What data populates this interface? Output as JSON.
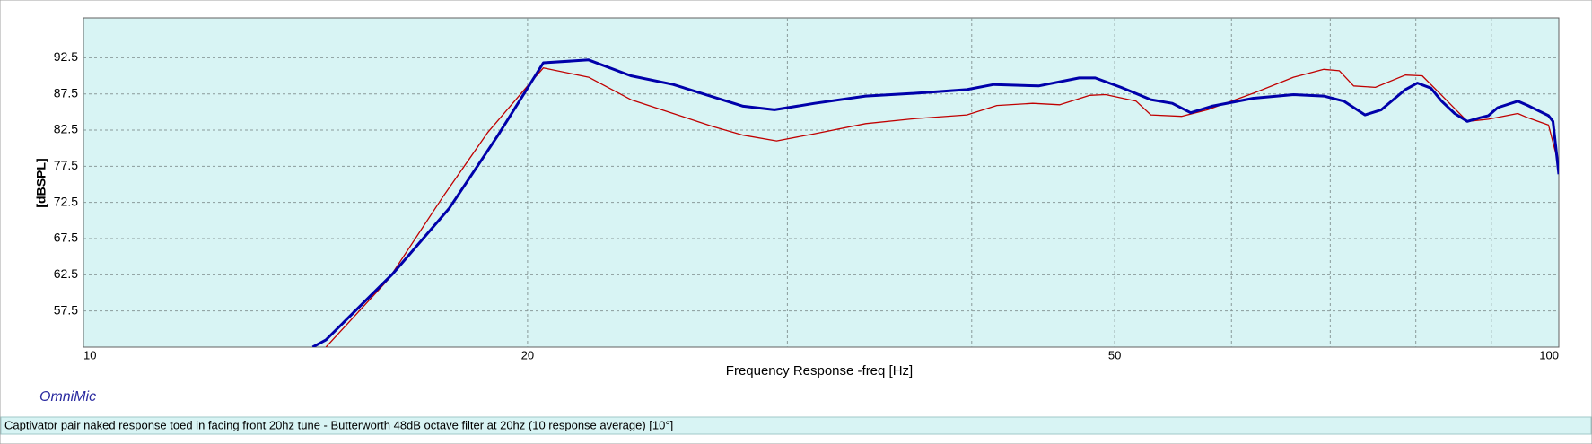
{
  "chart_data": {
    "type": "line",
    "ylabel": "[dBSPL]",
    "xlabel": "Frequency Response -freq [Hz]",
    "watermark": "OmniMic",
    "caption": "Captivator pair naked response toed in facing front 20hz tune - Butterworth 48dB octave filter at 20hz (10 response average) [10°]",
    "xscale": "log",
    "xlim": [
      10,
      100
    ],
    "xticks": [
      10,
      20,
      50,
      100
    ],
    "x_minor_grid": [
      30,
      40,
      60,
      70,
      80,
      90
    ],
    "ylim": [
      52.5,
      98
    ],
    "yticks": [
      57.5,
      62.5,
      67.5,
      72.5,
      77.5,
      82.5,
      87.5,
      92.5
    ],
    "grid": true,
    "series": [
      {
        "color": "#0000aa",
        "x": [
          14.3,
          14.6,
          16.2,
          17.7,
          19.1,
          20.5,
          22.0,
          23.5,
          25.1,
          28.0,
          29.4,
          31.3,
          33.9,
          36.7,
          39.7,
          41.4,
          44.4,
          47.3,
          48.5,
          50.5,
          52.9,
          54.7,
          56.3,
          58.2,
          62.1,
          66.1,
          69.3,
          71.5,
          73.9,
          75.8,
          78.7,
          80.2,
          81.9,
          83.3,
          85.0,
          86.7,
          88.4,
          89.6,
          90.9,
          93.8,
          95.3,
          96.8,
          98.4,
          99.1,
          100
        ],
        "values": [
          52.5,
          53.5,
          62.6,
          71.7,
          81.8,
          91.8,
          92.2,
          90.0,
          88.8,
          85.8,
          85.3,
          86.2,
          87.2,
          87.6,
          88.1,
          88.8,
          88.6,
          89.7,
          89.7,
          88.4,
          86.7,
          86.2,
          84.9,
          85.8,
          86.9,
          87.4,
          87.2,
          86.5,
          84.6,
          85.3,
          88.1,
          89.0,
          88.3,
          86.5,
          84.8,
          83.7,
          84.2,
          84.5,
          85.6,
          86.5,
          85.9,
          85.2,
          84.5,
          83.7,
          76.4
        ]
      },
      {
        "color": "#c00000",
        "x": [
          14.6,
          16.1,
          17.5,
          18.8,
          20.0,
          20.5,
          22.0,
          23.5,
          25.1,
          26.7,
          28.0,
          29.5,
          31.3,
          33.9,
          36.7,
          39.7,
          41.6,
          44.0,
          45.9,
          48.1,
          49.3,
          51.7,
          52.9,
          55.5,
          57.8,
          62.1,
          66.1,
          69.3,
          71.0,
          72.6,
          75.1,
          78.7,
          80.8,
          83.3,
          86.7,
          89.6,
          93.8,
          95.3,
          98.4,
          99.5,
          100
        ],
        "values": [
          52.5,
          61.9,
          73.1,
          82.2,
          88.6,
          91.1,
          89.8,
          86.7,
          84.8,
          83.0,
          81.8,
          81.0,
          82.0,
          83.4,
          84.1,
          84.6,
          85.9,
          86.2,
          86.0,
          87.3,
          87.4,
          86.5,
          84.6,
          84.4,
          85.3,
          87.6,
          89.8,
          90.9,
          90.7,
          88.6,
          88.4,
          90.1,
          90.0,
          87.3,
          83.7,
          84.0,
          84.8,
          84.2,
          83.2,
          79.4,
          77.3
        ]
      }
    ]
  }
}
